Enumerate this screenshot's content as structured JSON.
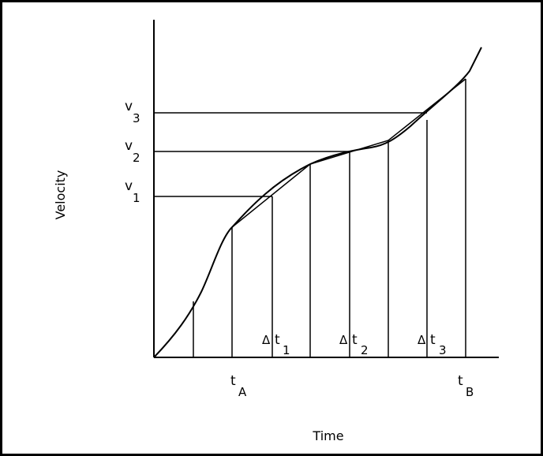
{
  "diagram": {
    "axis_labels": {
      "x": "Time",
      "y": "Velocity"
    },
    "velocity_labels": [
      {
        "base": "v",
        "sub": "1"
      },
      {
        "base": "v",
        "sub": "2"
      },
      {
        "base": "v",
        "sub": "3"
      }
    ],
    "time_labels": [
      {
        "base": "t",
        "sub": "A"
      },
      {
        "base": "t",
        "sub": "B"
      }
    ],
    "interval_labels": [
      {
        "delta": "Δ",
        "base": "t",
        "sub": "1"
      },
      {
        "delta": "Δ",
        "base": "t",
        "sub": "2"
      },
      {
        "delta": "Δ",
        "base": "t",
        "sub": "3"
      }
    ],
    "colors": {
      "line": "#000000",
      "background": "#ffffff",
      "frame": "#000000"
    }
  }
}
